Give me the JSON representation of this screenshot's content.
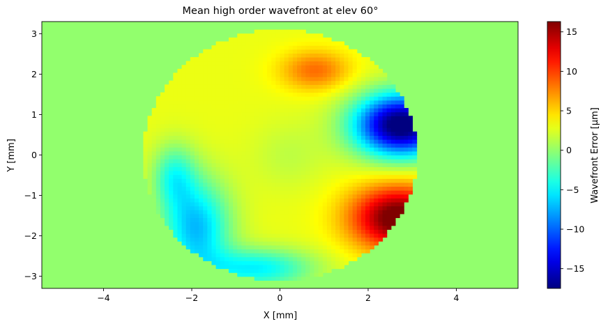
{
  "chart_data": {
    "type": "heatmap",
    "title": "Mean high order wavefront at elev 60°",
    "xlabel": "X [mm]",
    "ylabel": "Y [mm]",
    "xlim": [
      -5.4,
      5.4
    ],
    "ylim": [
      -3.3,
      3.3
    ],
    "xticks": [
      -4,
      -2,
      0,
      2,
      4
    ],
    "yticks": [
      -3,
      -2,
      -1,
      0,
      1,
      2,
      3
    ],
    "aperture_radius_mm": 3.1,
    "grid": false,
    "colormap": "jet",
    "background_value": 0,
    "colorbar": {
      "label": "Wavefront Error [µm]",
      "min": -17.5,
      "max": 16.3,
      "ticks": [
        -15,
        -10,
        -5,
        0,
        5,
        10,
        15
      ]
    },
    "features": [
      {
        "kind": "min",
        "x": 2.6,
        "y": 0.75,
        "value": -17.5
      },
      {
        "kind": "max",
        "x": 2.6,
        "y": -1.55,
        "value": 16.3
      },
      {
        "kind": "local-high",
        "x": 0.8,
        "y": 2.1,
        "value": 8
      },
      {
        "kind": "local-low",
        "x": -1.9,
        "y": -1.8,
        "value": -7
      },
      {
        "kind": "local-low",
        "x": -2.2,
        "y": -0.3,
        "value": -3
      }
    ],
    "tick_labels_x": [
      "−4",
      "−2",
      "0",
      "2",
      "4"
    ],
    "tick_labels_y": [
      "−3",
      "−2",
      "−1",
      "0",
      "1",
      "2",
      "3"
    ],
    "colorbar_tick_labels": [
      "−15",
      "−10",
      "−5",
      "0",
      "5",
      "10",
      "15"
    ]
  }
}
